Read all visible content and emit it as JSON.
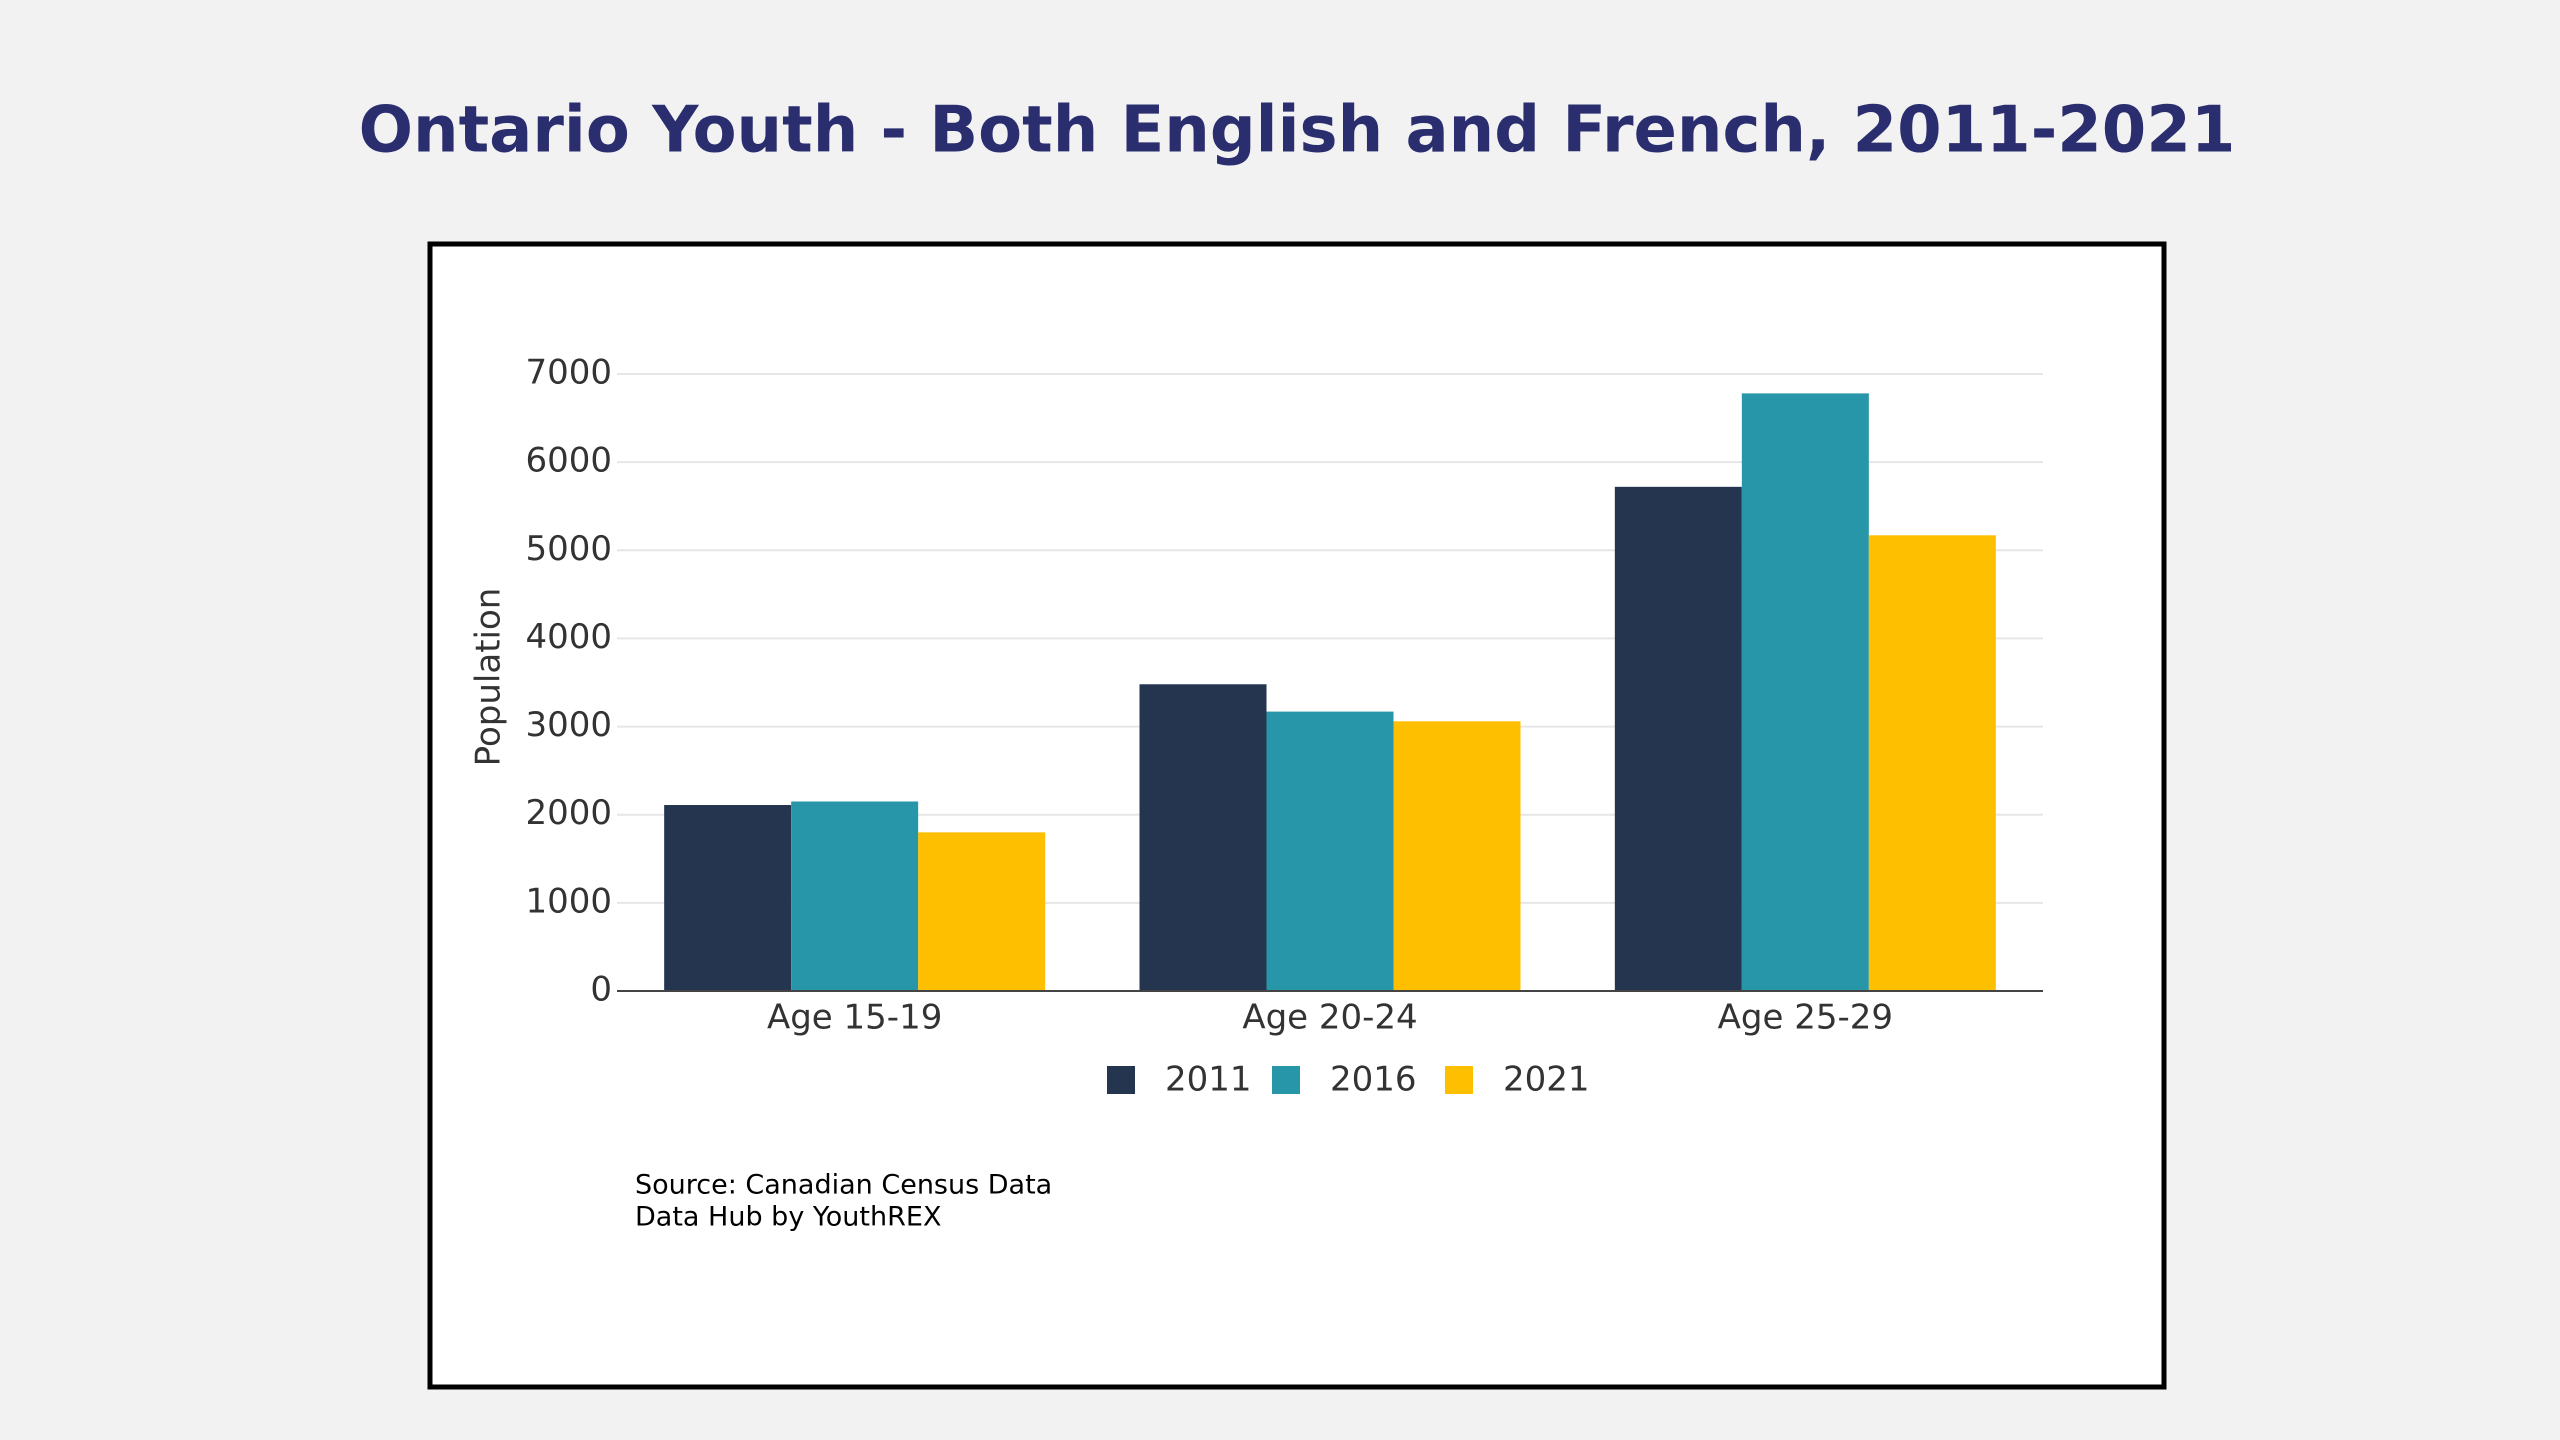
{
  "chart_data": {
    "type": "bar",
    "title": "Ontario Youth - Both English and French, 2011-2021",
    "y_label": "Population",
    "categories": [
      "Age 15-19",
      "Age 20-24",
      "Age 25-29"
    ],
    "series": [
      {
        "name": "2011",
        "color": "#253550",
        "values": [
          2110,
          3480,
          5720
        ]
      },
      {
        "name": "2016",
        "color": "#2796a8",
        "values": [
          2150,
          3170,
          6780
        ]
      },
      {
        "name": "2021",
        "color": "#fdbf00",
        "values": [
          1800,
          3060,
          5170
        ]
      }
    ],
    "ylim": [
      0,
      7000
    ],
    "yticks": [
      0,
      1000,
      2000,
      3000,
      4000,
      5000,
      6000,
      7000
    ],
    "grid": true,
    "legend": "bottom",
    "notes": [
      "Source: Canadian Census Data",
      "Data Hub by YouthREX"
    ]
  }
}
